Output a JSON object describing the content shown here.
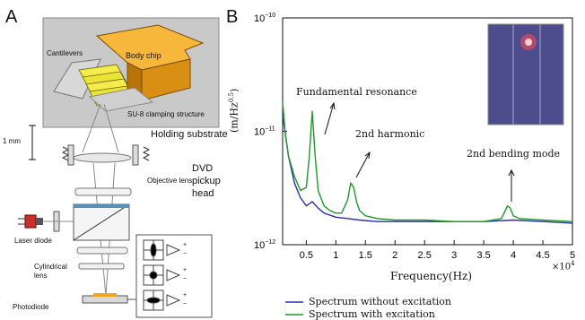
{
  "panel_a": {
    "label": "A",
    "cantilevers": "Cantilevers",
    "body_chip": "Body chip",
    "su8": "SU-8 clamping structure",
    "holding_substrate": "Holding substrate",
    "scale_bar": "1 mm",
    "objective_lens": "Objective lens",
    "dvd_pickup_head": [
      "DVD",
      "pickup",
      "head"
    ],
    "laser_diode": "Laser diode",
    "cylindrical_lens": [
      "Cylindrical",
      "lens"
    ],
    "photodiode": "Photodiode",
    "diagram_signs": [
      "+",
      "−",
      "+",
      "−",
      "+",
      "−"
    ]
  },
  "panel_b": {
    "label": "B",
    "annotations": {
      "fundamental": "Fundamental resonance",
      "harmonic": "2nd harmonic",
      "bending": "2nd bending mode"
    },
    "legend": [
      "Spectrum without excitation",
      "Spectrum with excitation"
    ]
  },
  "colors": {
    "no_excitation": "#2b2fb0",
    "with_excitation": "#1f9a2a",
    "chip": "#f2a81d",
    "inset_bg": "#4d4c8c"
  },
  "chart_data": {
    "type": "line",
    "xlabel": "Frequency(Hz)",
    "x_multiplier_label": "×10",
    "x_multiplier_exp": "4",
    "ylabel": "(m/Hz",
    "ylabel_exp": "0.5",
    "ylabel_close": ")",
    "xlim": [
      1000,
      50000
    ],
    "ylim": [
      1e-12,
      1e-10
    ],
    "yscale": "log",
    "x_ticks": [
      5000,
      10000,
      15000,
      20000,
      25000,
      30000,
      35000,
      40000,
      45000,
      50000
    ],
    "x_tick_labels": [
      "0.5",
      "1",
      "1.5",
      "2",
      "2.5",
      "3",
      "3.5",
      "4",
      "4.5",
      "5"
    ],
    "y_ticks": [
      1e-12,
      1e-11,
      1e-10
    ],
    "y_tick_mant": [
      "10",
      "10",
      "10"
    ],
    "y_tick_exp": [
      "−12",
      "−11",
      "−10"
    ],
    "grid": false,
    "legend_position": "bottom-center",
    "series": [
      {
        "name": "Spectrum without excitation",
        "x": [
          1000,
          2000,
          3000,
          4000,
          5000,
          6000,
          7000,
          8000,
          10000,
          12000,
          14000,
          17000,
          20000,
          25000,
          30000,
          35000,
          40000,
          45000,
          50000
        ],
        "y": [
          1.4e-11,
          6e-12,
          3.5e-12,
          2.6e-12,
          2.2e-12,
          2.4e-12,
          2.1e-12,
          1.9e-12,
          1.75e-12,
          1.7e-12,
          1.65e-12,
          1.6e-12,
          1.6e-12,
          1.6e-12,
          1.6e-12,
          1.6e-12,
          1.65e-12,
          1.6e-12,
          1.55e-12
        ]
      },
      {
        "name": "Spectrum with excitation",
        "x": [
          1000,
          1500,
          2000,
          3000,
          4000,
          5000,
          5500,
          6000,
          6500,
          7000,
          8000,
          9000,
          10000,
          11000,
          12000,
          12500,
          13000,
          13500,
          14000,
          15000,
          17000,
          20000,
          25000,
          30000,
          35000,
          38000,
          39000,
          39500,
          40000,
          41000,
          45000,
          50000
        ],
        "y": [
          1.8e-11,
          9e-12,
          6e-12,
          4e-12,
          3e-12,
          3.2e-12,
          6e-12,
          1.5e-11,
          6e-12,
          3e-12,
          2.2e-12,
          2e-12,
          1.9e-12,
          1.9e-12,
          2.5e-12,
          3.5e-12,
          3.2e-12,
          2.4e-12,
          2e-12,
          1.8e-12,
          1.7e-12,
          1.65e-12,
          1.65e-12,
          1.6e-12,
          1.6e-12,
          1.7e-12,
          2.2e-12,
          2.1e-12,
          1.8e-12,
          1.7e-12,
          1.65e-12,
          1.6e-12
        ]
      }
    ]
  }
}
